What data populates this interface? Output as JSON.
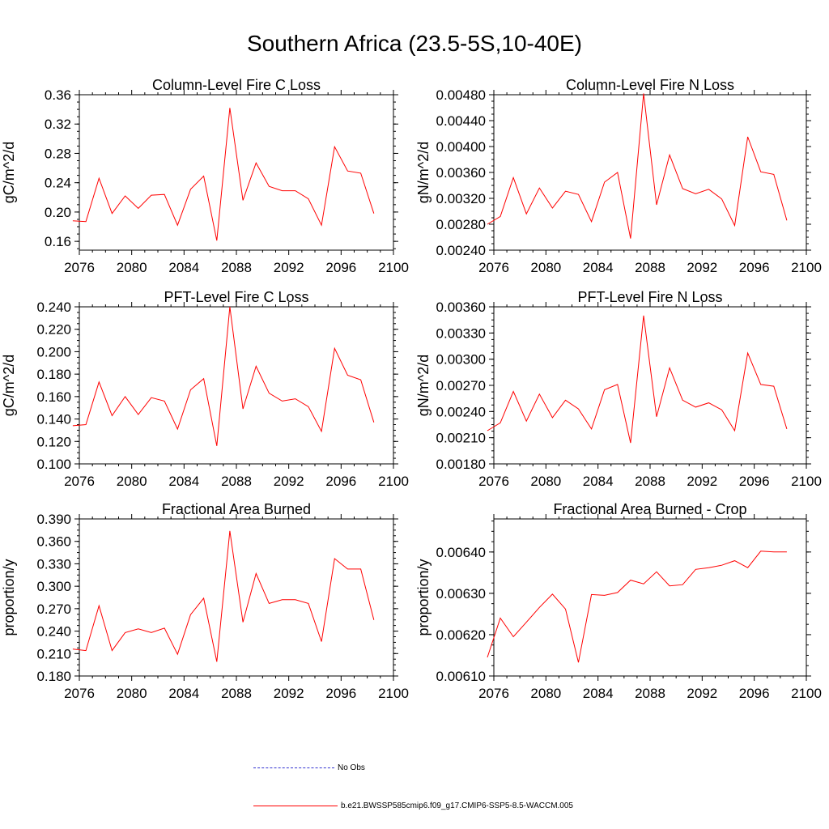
{
  "figure_title": "Southern Africa (23.5-5S,10-40E)",
  "colors": {
    "series": "#ff0000",
    "obs": "#3030d0",
    "axis": "#000000"
  },
  "legend": [
    {
      "label": "No Obs",
      "style": "dashed",
      "color": "#3030d0"
    },
    {
      "label": "b.e21.BWSSP585cmip6.f09_g17.CMIP6-SSP5-8.5-WACCM.005",
      "style": "solid",
      "color": "#ff0000"
    }
  ],
  "chart_data": [
    {
      "type": "line",
      "title": "Column-Level Fire C Loss",
      "ylabel": "gC/m^2/d",
      "xlim": [
        2076,
        2100
      ],
      "ylim": [
        0.148,
        0.36
      ],
      "xticks": [
        "2076",
        "2080",
        "2084",
        "2088",
        "2092",
        "2096",
        "2100"
      ],
      "yticks": [
        "0.16",
        "0.20",
        "0.24",
        "0.28",
        "0.32",
        "0.36"
      ],
      "x": [
        2075.5,
        2076.5,
        2077.5,
        2078.5,
        2079.5,
        2080.5,
        2081.5,
        2082.5,
        2083.5,
        2084.5,
        2085.5,
        2086.5,
        2087.5,
        2088.5,
        2089.5,
        2090.5,
        2091.5,
        2092.5,
        2093.5,
        2094.5,
        2095.5,
        2096.5,
        2097.5,
        2098.5
      ],
      "series": [
        {
          "values": [
            0.188,
            0.187,
            0.246,
            0.198,
            0.222,
            0.205,
            0.223,
            0.224,
            0.182,
            0.231,
            0.249,
            0.161,
            0.342,
            0.216,
            0.267,
            0.235,
            0.229,
            0.229,
            0.218,
            0.182,
            0.289,
            0.256,
            0.253,
            0.198
          ]
        }
      ]
    },
    {
      "type": "line",
      "title": "Column-Level Fire N Loss",
      "ylabel": "gN/m^2/d",
      "xlim": [
        2076,
        2100
      ],
      "ylim": [
        0.0024,
        0.0048
      ],
      "xticks": [
        "2076",
        "2080",
        "2084",
        "2088",
        "2092",
        "2096",
        "2100"
      ],
      "yticks": [
        "0.00240",
        "0.00280",
        "0.00320",
        "0.00360",
        "0.00400",
        "0.00440",
        "0.00480"
      ],
      "x": [
        2075.5,
        2076.5,
        2077.5,
        2078.5,
        2079.5,
        2080.5,
        2081.5,
        2082.5,
        2083.5,
        2084.5,
        2085.5,
        2086.5,
        2087.5,
        2088.5,
        2089.5,
        2090.5,
        2091.5,
        2092.5,
        2093.5,
        2094.5,
        2095.5,
        2096.5,
        2097.5,
        2098.5
      ],
      "series": [
        {
          "values": [
            0.0028,
            0.00292,
            0.00352,
            0.00296,
            0.00336,
            0.00305,
            0.00331,
            0.00326,
            0.00284,
            0.00345,
            0.0036,
            0.00258,
            0.00482,
            0.0031,
            0.00387,
            0.00335,
            0.00327,
            0.00334,
            0.00319,
            0.00278,
            0.00415,
            0.00361,
            0.00357,
            0.00286
          ]
        }
      ]
    },
    {
      "type": "line",
      "title": "PFT-Level Fire C Loss",
      "ylabel": "gC/m^2/d",
      "xlim": [
        2076,
        2100
      ],
      "ylim": [
        0.1,
        0.24
      ],
      "xticks": [
        "2076",
        "2080",
        "2084",
        "2088",
        "2092",
        "2096",
        "2100"
      ],
      "yticks": [
        "0.100",
        "0.120",
        "0.140",
        "0.160",
        "0.180",
        "0.200",
        "0.220",
        "0.240"
      ],
      "x": [
        2075.5,
        2076.5,
        2077.5,
        2078.5,
        2079.5,
        2080.5,
        2081.5,
        2082.5,
        2083.5,
        2084.5,
        2085.5,
        2086.5,
        2087.5,
        2088.5,
        2089.5,
        2090.5,
        2091.5,
        2092.5,
        2093.5,
        2094.5,
        2095.5,
        2096.5,
        2097.5,
        2098.5
      ],
      "series": [
        {
          "values": [
            0.134,
            0.135,
            0.173,
            0.143,
            0.16,
            0.144,
            0.159,
            0.156,
            0.131,
            0.166,
            0.176,
            0.116,
            0.24,
            0.149,
            0.187,
            0.163,
            0.156,
            0.158,
            0.151,
            0.129,
            0.203,
            0.179,
            0.175,
            0.137
          ]
        }
      ]
    },
    {
      "type": "line",
      "title": "PFT-Level Fire N Loss",
      "ylabel": "gN/m^2/d",
      "xlim": [
        2076,
        2100
      ],
      "ylim": [
        0.0018,
        0.0036
      ],
      "xticks": [
        "2076",
        "2080",
        "2084",
        "2088",
        "2092",
        "2096",
        "2100"
      ],
      "yticks": [
        "0.00180",
        "0.00210",
        "0.00240",
        "0.00270",
        "0.00300",
        "0.00330",
        "0.00360"
      ],
      "x": [
        2075.5,
        2076.5,
        2077.5,
        2078.5,
        2079.5,
        2080.5,
        2081.5,
        2082.5,
        2083.5,
        2084.5,
        2085.5,
        2086.5,
        2087.5,
        2088.5,
        2089.5,
        2090.5,
        2091.5,
        2092.5,
        2093.5,
        2094.5,
        2095.5,
        2096.5,
        2097.5,
        2098.5
      ],
      "series": [
        {
          "values": [
            0.00218,
            0.00227,
            0.00263,
            0.00229,
            0.0026,
            0.00233,
            0.00253,
            0.00243,
            0.0022,
            0.00265,
            0.00271,
            0.00204,
            0.0035,
            0.00234,
            0.0029,
            0.00253,
            0.00245,
            0.0025,
            0.00242,
            0.00218,
            0.00307,
            0.00271,
            0.00269,
            0.0022
          ]
        }
      ]
    },
    {
      "type": "line",
      "title": "Fractional Area Burned",
      "ylabel": "proportion/y",
      "xlim": [
        2076,
        2100
      ],
      "ylim": [
        0.18,
        0.39
      ],
      "xticks": [
        "2076",
        "2080",
        "2084",
        "2088",
        "2092",
        "2096",
        "2100"
      ],
      "yticks": [
        "0.180",
        "0.210",
        "0.240",
        "0.270",
        "0.300",
        "0.330",
        "0.360",
        "0.390"
      ],
      "x": [
        2075.5,
        2076.5,
        2077.5,
        2078.5,
        2079.5,
        2080.5,
        2081.5,
        2082.5,
        2083.5,
        2084.5,
        2085.5,
        2086.5,
        2087.5,
        2088.5,
        2089.5,
        2090.5,
        2091.5,
        2092.5,
        2093.5,
        2094.5,
        2095.5,
        2096.5,
        2097.5,
        2098.5
      ],
      "series": [
        {
          "values": [
            0.216,
            0.214,
            0.274,
            0.214,
            0.238,
            0.243,
            0.238,
            0.244,
            0.209,
            0.262,
            0.284,
            0.199,
            0.374,
            0.252,
            0.317,
            0.277,
            0.282,
            0.282,
            0.277,
            0.226,
            0.337,
            0.323,
            0.323,
            0.255
          ]
        }
      ]
    },
    {
      "type": "line",
      "title": "Fractional Area Burned - Crop",
      "ylabel": "proportion/y",
      "xlim": [
        2076,
        2100
      ],
      "ylim": [
        0.0061,
        0.00648
      ],
      "xticks": [
        "2076",
        "2080",
        "2084",
        "2088",
        "2092",
        "2096",
        "2100"
      ],
      "yticks": [
        "0.00610",
        "0.00620",
        "0.00630",
        "0.00640"
      ],
      "x": [
        2075.5,
        2076.5,
        2077.5,
        2078.5,
        2079.5,
        2080.5,
        2081.5,
        2082.5,
        2083.5,
        2084.5,
        2085.5,
        2086.5,
        2087.5,
        2088.5,
        2089.5,
        2090.5,
        2091.5,
        2092.5,
        2093.5,
        2094.5,
        2095.5,
        2096.5,
        2097.5,
        2098.5
      ],
      "series": [
        {
          "values": [
            0.006145,
            0.00624,
            0.006195,
            0.00623,
            0.006266,
            0.006298,
            0.006262,
            0.006133,
            0.006297,
            0.006295,
            0.006302,
            0.006332,
            0.006323,
            0.006352,
            0.006318,
            0.006321,
            0.006358,
            0.006362,
            0.006368,
            0.006379,
            0.006362,
            0.006402,
            0.0064,
            0.0064
          ]
        }
      ]
    }
  ]
}
